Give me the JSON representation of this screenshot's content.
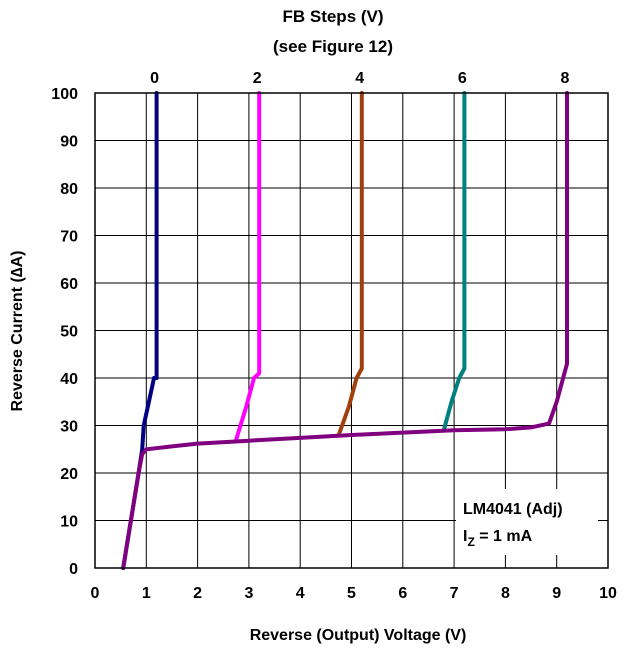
{
  "chart_data": {
    "type": "line",
    "title_lines": [
      "FB Steps (V)",
      "(see Figure 12)"
    ],
    "xlabel": "Reverse (Output) Voltage (V)",
    "ylabel": "Reverse Current (∆A)",
    "xlim": [
      0,
      10
    ],
    "ylim": [
      0,
      100
    ],
    "xticks": [
      0,
      1,
      2,
      3,
      4,
      5,
      6,
      7,
      8,
      9,
      10
    ],
    "yticks": [
      0,
      10,
      20,
      30,
      40,
      50,
      60,
      70,
      80,
      90,
      100
    ],
    "grid": true,
    "annotation": {
      "line1": "LM4041 (Adj)",
      "line2_main": "I",
      "line2_sub": "Z",
      "line2_rest": " = 1 mA"
    },
    "series": [
      {
        "name": "0",
        "color": "#000080",
        "x": [
          0.55,
          0.7,
          0.85,
          0.92,
          0.95,
          1.05,
          1.15,
          1.2,
          1.2
        ],
        "y": [
          0,
          10,
          20,
          25,
          30,
          35,
          40,
          40,
          100
        ]
      },
      {
        "name": "2",
        "color": "#ff00ff",
        "x": [
          2.75,
          2.95,
          3.1,
          3.2,
          3.2
        ],
        "y": [
          27,
          34,
          40,
          41,
          100
        ]
      },
      {
        "name": "4",
        "color": "#a0400a",
        "x": [
          4.75,
          4.95,
          5.1,
          5.2,
          5.2
        ],
        "y": [
          28,
          34,
          40,
          42,
          100
        ]
      },
      {
        "name": "6",
        "color": "#008080",
        "x": [
          6.8,
          6.95,
          7.1,
          7.2,
          7.2
        ],
        "y": [
          29,
          35,
          40,
          42,
          100
        ]
      },
      {
        "name": "8",
        "color": "#800080",
        "x": [
          0.55,
          0.7,
          0.85,
          0.92,
          1.0,
          1.5,
          2.0,
          3.0,
          4.0,
          5.0,
          6.0,
          7.0,
          8.0,
          8.5,
          8.85,
          9.0,
          9.15,
          9.2,
          9.2
        ],
        "y": [
          0,
          10,
          20,
          24,
          25,
          25.6,
          26.2,
          26.8,
          27.4,
          28.0,
          28.5,
          29.0,
          29.2,
          29.6,
          30.4,
          35,
          41,
          43,
          100
        ]
      }
    ]
  }
}
